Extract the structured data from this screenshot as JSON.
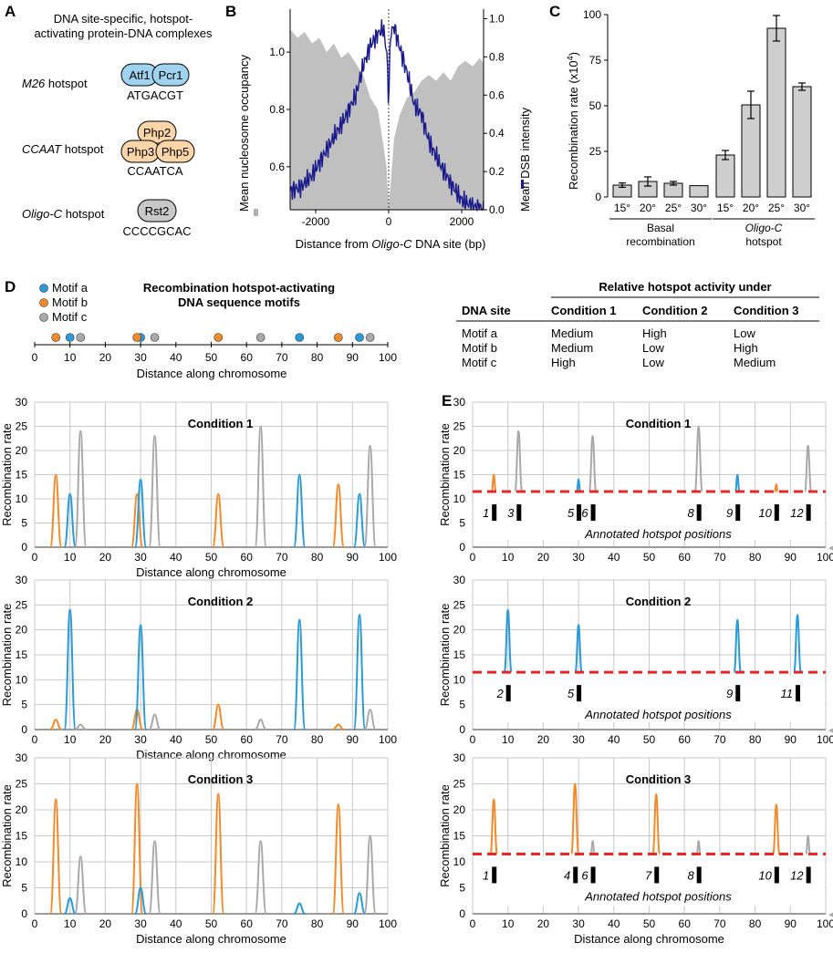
{
  "panelA": {
    "letter": "A",
    "title_line1": "DNA site-specific, hotspot-",
    "title_line2": "activating protein-DNA complexes",
    "hotspots": [
      {
        "name_italic": "M26",
        "name_rest": " hotspot",
        "proteins": [
          "Atf1",
          "Pcr1"
        ],
        "sequence": "ATGACGT",
        "protein_color": "#9fd3f0"
      },
      {
        "name_italic": "CCAAT",
        "name_rest": " hotspot",
        "proteins": [
          "Php2",
          "Php3",
          "Php5"
        ],
        "sequence": "CCAATCA",
        "protein_color": "#fcd6a8"
      },
      {
        "name_italic": "Oligo-C",
        "name_rest": " hotspot",
        "proteins": [
          "Rst2"
        ],
        "sequence": "CCCCGCAC",
        "protein_color": "#c8c8c8"
      }
    ]
  },
  "panelB": {
    "letter": "B",
    "chart_data": {
      "type": "area",
      "xlabel_pre": "Distance from ",
      "xlabel_ital": "Oligo-C",
      "xlabel_post": " DNA site (bp)",
      "ylabel_left": "Mean nucleosome occupancy",
      "ylabel_right": "Mean DSB intensity",
      "xlim": [
        -2700,
        2600
      ],
      "ylim_left": [
        0.45,
        1.15
      ],
      "ylim_right": [
        0,
        1.05
      ],
      "xticks": [
        -2000,
        0,
        2000
      ],
      "yticks_left": [
        0.6,
        0.8,
        1.0
      ],
      "yticks_right": [
        0.0,
        0.2,
        0.4,
        0.6,
        0.8,
        1.0
      ],
      "nucleosome_x": [
        -2700,
        -2500,
        -2300,
        -2100,
        -1900,
        -1700,
        -1500,
        -1300,
        -1100,
        -900,
        -700,
        -500,
        -300,
        -150,
        -60,
        0,
        60,
        150,
        300,
        500,
        700,
        900,
        1100,
        1300,
        1500,
        1700,
        1900,
        2100,
        2300,
        2500,
        2600
      ],
      "nucleosome_y": [
        1.08,
        1.05,
        1.07,
        1.03,
        1.05,
        1.0,
        1.03,
        0.98,
        1.0,
        0.96,
        0.92,
        0.84,
        0.8,
        0.68,
        0.6,
        0.46,
        0.55,
        0.7,
        0.78,
        0.84,
        0.86,
        0.9,
        0.92,
        0.9,
        0.93,
        0.9,
        0.95,
        0.97,
        0.95,
        0.98,
        0.96
      ],
      "dsb_x": [
        -2700,
        -2400,
        -2100,
        -1800,
        -1500,
        -1200,
        -900,
        -700,
        -500,
        -300,
        -150,
        -50,
        0,
        50,
        150,
        300,
        500,
        700,
        900,
        1100,
        1400,
        1700,
        2000,
        2300,
        2600
      ],
      "dsb_y": [
        0.1,
        0.12,
        0.18,
        0.28,
        0.38,
        0.48,
        0.6,
        0.75,
        0.86,
        0.92,
        0.95,
        0.82,
        0.55,
        0.92,
        0.96,
        0.85,
        0.72,
        0.55,
        0.5,
        0.36,
        0.24,
        0.14,
        0.05,
        0.02,
        0.0
      ],
      "nucleosome_color": "#c0c0c0",
      "dsb_color": "#1a1a8c"
    }
  },
  "panelC": {
    "letter": "C",
    "chart_data": {
      "type": "bar",
      "ylabel": "Recombination rate (x10",
      "ylabel_sup": "4",
      "ylabel_end": ")",
      "ylim": [
        0,
        100
      ],
      "yticks": [
        0,
        25,
        50,
        75,
        100
      ],
      "groups": [
        {
          "name_line1": "Basal",
          "name_line2": "recombination",
          "categories": [
            "15°",
            "20°",
            "25°",
            "30°"
          ],
          "values": [
            6.5,
            8.5,
            7.5,
            6.2
          ],
          "errors": [
            1.2,
            2.5,
            1.0,
            0.0
          ]
        },
        {
          "name_line1": "Oligo-C",
          "name_line2": "hotspot",
          "categories": [
            "15°",
            "20°",
            "25°",
            "30°"
          ],
          "values": [
            23,
            50.5,
            92.5,
            60.5
          ],
          "errors": [
            2.5,
            7.5,
            7.0,
            2.0
          ]
        }
      ],
      "bar_color": "#cfcfcf"
    }
  },
  "panelD": {
    "letter": "D",
    "title_line1": "Recombination hotspot-activating",
    "title_line2": "DNA sequence motifs",
    "legend": [
      {
        "label": "Motif a",
        "color": "#2a9ad8"
      },
      {
        "label": "Motif b",
        "color": "#f28a2a"
      },
      {
        "label": "Motif c",
        "color": "#a9a9a9"
      }
    ],
    "motif_positions": {
      "a": [
        10,
        30,
        75,
        92
      ],
      "b": [
        6,
        29,
        52,
        86
      ],
      "c": [
        13,
        34,
        64,
        95
      ]
    },
    "axis_label": "Distance along chromosome",
    "ticks": [
      0,
      10,
      20,
      30,
      40,
      50,
      60,
      70,
      80,
      90,
      100
    ]
  },
  "table": {
    "header_main": "Relative hotspot activity under",
    "col_site": "DNA site",
    "conditions": [
      "Condition 1",
      "Condition 2",
      "Condition 3"
    ],
    "rows": [
      {
        "site": "Motif a",
        "values": [
          "Medium",
          "High",
          "Low"
        ]
      },
      {
        "site": "Motif b",
        "values": [
          "Medium",
          "Low",
          "High"
        ]
      },
      {
        "site": "Motif c",
        "values": [
          "High",
          "Low",
          "Medium"
        ]
      }
    ]
  },
  "panelE": {
    "letter": "E",
    "annotation_label": "Annotated hotspot positions",
    "threshold": 11.5
  },
  "chart_data": {
    "type": "line",
    "xlabel": "Distance along chromosome",
    "ylabel": "Recombination rate",
    "xlim": [
      0,
      100
    ],
    "ylim": [
      0,
      30
    ],
    "xticks": [
      0,
      10,
      20,
      30,
      40,
      50,
      60,
      70,
      80,
      90,
      100
    ],
    "yticks": [
      0,
      5,
      10,
      15,
      20,
      25,
      30
    ],
    "motif_positions": {
      "a": [
        10,
        30,
        75,
        92
      ],
      "b": [
        6,
        29,
        52,
        86
      ],
      "c": [
        13,
        34,
        64,
        95
      ]
    },
    "colors": {
      "a": "#2a9ad8",
      "b": "#f28a2a",
      "c": "#a9a9a9"
    },
    "conditions": [
      {
        "title": "Condition 1",
        "peaks": {
          "a": [
            11,
            14,
            15,
            11
          ],
          "b": [
            15,
            11,
            11,
            13
          ],
          "c": [
            24,
            23,
            25,
            21
          ]
        },
        "hotspots": [
          {
            "label": "1",
            "x": 6
          },
          {
            "label": "3",
            "x": 13
          },
          {
            "label": "5",
            "x": 30
          },
          {
            "label": "6",
            "x": 34
          },
          {
            "label": "8",
            "x": 64
          },
          {
            "label": "9",
            "x": 75
          },
          {
            "label": "10",
            "x": 86
          },
          {
            "label": "12",
            "x": 95
          }
        ]
      },
      {
        "title": "Condition 2",
        "peaks": {
          "a": [
            24,
            21,
            22,
            23
          ],
          "b": [
            2,
            4,
            5,
            1
          ],
          "c": [
            1,
            3,
            2,
            4
          ]
        },
        "hotspots": [
          {
            "label": "2",
            "x": 10
          },
          {
            "label": "5",
            "x": 30
          },
          {
            "label": "9",
            "x": 75
          },
          {
            "label": "11",
            "x": 92
          }
        ]
      },
      {
        "title": "Condition 3",
        "peaks": {
          "a": [
            3,
            5,
            2,
            4
          ],
          "b": [
            22,
            25,
            23,
            21
          ],
          "c": [
            11,
            14,
            14,
            15
          ]
        },
        "hotspots": [
          {
            "label": "1",
            "x": 6
          },
          {
            "label": "4",
            "x": 29
          },
          {
            "label": "6",
            "x": 34
          },
          {
            "label": "7",
            "x": 52
          },
          {
            "label": "8",
            "x": 64
          },
          {
            "label": "10",
            "x": 86
          },
          {
            "label": "12",
            "x": 95
          }
        ]
      }
    ]
  }
}
